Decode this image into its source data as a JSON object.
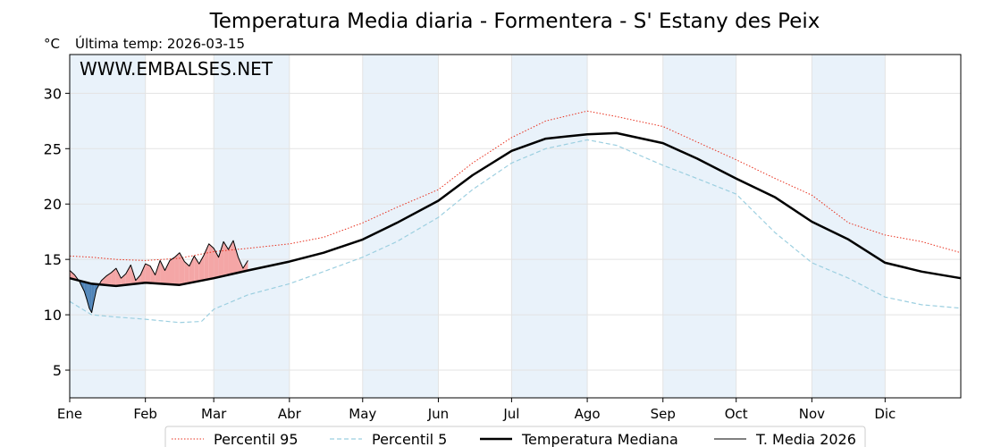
{
  "chart_data": {
    "type": "line",
    "title": "Temperatura Media diaria - Formentera - S' Estany des Peix",
    "unit_label": "°C",
    "subtitle": "Última temp: 2026-03-15",
    "watermark": "WWW.EMBALSES.NET",
    "x_tick_labels": [
      "Ene",
      "Feb",
      "Mar",
      "Abr",
      "May",
      "Jun",
      "Jul",
      "Ago",
      "Sep",
      "Oct",
      "Nov",
      "Dic"
    ],
    "month_start_days": [
      1,
      32,
      60,
      91,
      121,
      152,
      182,
      213,
      244,
      274,
      305,
      335
    ],
    "xlim": [
      1,
      366
    ],
    "ylim": [
      2.5,
      33.5
    ],
    "y_ticks": [
      5,
      10,
      15,
      20,
      25,
      30
    ],
    "grid": true,
    "shaded_month_bands": true,
    "legend_position": "bottom-center",
    "colors": {
      "title": "#2b6ea6",
      "watermark": "#2b6ea6",
      "p95": "#e8301e",
      "p5": "#9ccfe0",
      "median": "#000000",
      "current": "#000000",
      "above_fill": "#f4a6a6",
      "below_fill": "#4f84b8",
      "band": "#e9f2fa",
      "grid": "#e3e3e3"
    },
    "series": [
      {
        "name": "Percentil 95",
        "style": "dotted",
        "points": [
          [
            1,
            15.3
          ],
          [
            10,
            15.2
          ],
          [
            20,
            15.0
          ],
          [
            32,
            14.9
          ],
          [
            46,
            15.1
          ],
          [
            60,
            15.7
          ],
          [
            74,
            16.0
          ],
          [
            91,
            16.4
          ],
          [
            105,
            17.0
          ],
          [
            121,
            18.3
          ],
          [
            135,
            19.7
          ],
          [
            152,
            21.3
          ],
          [
            166,
            23.7
          ],
          [
            182,
            26.0
          ],
          [
            196,
            27.5
          ],
          [
            213,
            28.4
          ],
          [
            225,
            27.9
          ],
          [
            244,
            27.0
          ],
          [
            258,
            25.6
          ],
          [
            274,
            24.0
          ],
          [
            290,
            22.3
          ],
          [
            305,
            20.8
          ],
          [
            320,
            18.3
          ],
          [
            335,
            17.2
          ],
          [
            350,
            16.6
          ],
          [
            366,
            15.6
          ]
        ]
      },
      {
        "name": "Percentil 5",
        "style": "dashed",
        "points": [
          [
            1,
            11.2
          ],
          [
            10,
            10.0
          ],
          [
            20,
            9.8
          ],
          [
            32,
            9.6
          ],
          [
            46,
            9.3
          ],
          [
            55,
            9.4
          ],
          [
            60,
            10.5
          ],
          [
            74,
            11.8
          ],
          [
            91,
            12.8
          ],
          [
            105,
            13.9
          ],
          [
            121,
            15.2
          ],
          [
            135,
            16.6
          ],
          [
            152,
            18.8
          ],
          [
            166,
            21.3
          ],
          [
            182,
            23.7
          ],
          [
            196,
            25.0
          ],
          [
            213,
            25.8
          ],
          [
            225,
            25.3
          ],
          [
            244,
            23.5
          ],
          [
            258,
            22.3
          ],
          [
            274,
            20.9
          ],
          [
            290,
            17.4
          ],
          [
            305,
            14.7
          ],
          [
            320,
            13.3
          ],
          [
            335,
            11.6
          ],
          [
            350,
            10.9
          ],
          [
            366,
            10.6
          ]
        ]
      },
      {
        "name": "Temperatura Mediana",
        "style": "solid-bold",
        "points": [
          [
            1,
            13.3
          ],
          [
            10,
            12.8
          ],
          [
            20,
            12.6
          ],
          [
            32,
            12.9
          ],
          [
            46,
            12.7
          ],
          [
            60,
            13.3
          ],
          [
            74,
            14.0
          ],
          [
            91,
            14.8
          ],
          [
            105,
            15.6
          ],
          [
            121,
            16.8
          ],
          [
            135,
            18.3
          ],
          [
            152,
            20.3
          ],
          [
            166,
            22.6
          ],
          [
            182,
            24.8
          ],
          [
            196,
            25.9
          ],
          [
            213,
            26.3
          ],
          [
            225,
            26.4
          ],
          [
            244,
            25.5
          ],
          [
            258,
            24.1
          ],
          [
            274,
            22.3
          ],
          [
            290,
            20.6
          ],
          [
            305,
            18.4
          ],
          [
            320,
            16.8
          ],
          [
            335,
            14.7
          ],
          [
            350,
            13.9
          ],
          [
            366,
            13.3
          ]
        ]
      },
      {
        "name": "T. Media 2026",
        "style": "solid-thin",
        "points": [
          [
            1,
            14.0
          ],
          [
            3,
            13.6
          ],
          [
            5,
            13.0
          ],
          [
            7,
            12.1
          ],
          [
            8,
            11.4
          ],
          [
            9,
            10.6
          ],
          [
            10,
            10.2
          ],
          [
            11,
            11.3
          ],
          [
            12,
            12.3
          ],
          [
            14,
            13.1
          ],
          [
            16,
            13.5
          ],
          [
            18,
            13.8
          ],
          [
            20,
            14.2
          ],
          [
            22,
            13.3
          ],
          [
            24,
            13.7
          ],
          [
            26,
            14.5
          ],
          [
            28,
            13.1
          ],
          [
            30,
            13.6
          ],
          [
            32,
            14.6
          ],
          [
            34,
            14.4
          ],
          [
            36,
            13.6
          ],
          [
            38,
            14.9
          ],
          [
            40,
            14.0
          ],
          [
            42,
            14.9
          ],
          [
            44,
            15.2
          ],
          [
            46,
            15.6
          ],
          [
            48,
            14.8
          ],
          [
            50,
            14.4
          ],
          [
            52,
            15.3
          ],
          [
            54,
            14.6
          ],
          [
            56,
            15.4
          ],
          [
            58,
            16.4
          ],
          [
            60,
            16.0
          ],
          [
            62,
            15.2
          ],
          [
            64,
            16.6
          ],
          [
            66,
            15.9
          ],
          [
            68,
            16.7
          ],
          [
            70,
            15.2
          ],
          [
            72,
            14.2
          ],
          [
            74,
            14.9
          ]
        ]
      }
    ]
  }
}
